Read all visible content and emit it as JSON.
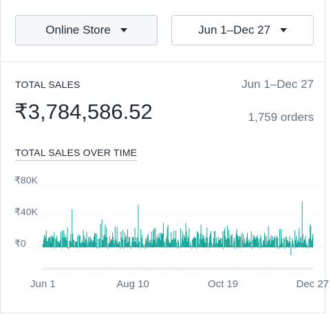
{
  "filters": {
    "channel": "Online Store",
    "date_range": "Jun 1–Dec 27"
  },
  "total_sales": {
    "title": "TOTAL SALES",
    "range": "Jun 1–Dec 27",
    "value": "₹3,784,586.52",
    "orders": "1,759 orders"
  },
  "chart_data": {
    "type": "bar",
    "title": "TOTAL SALES OVER TIME",
    "xlabel": "",
    "ylabel": "",
    "ylim": [
      -20000,
      80000
    ],
    "y_ticks": [
      "₹80K",
      "₹40K",
      "₹0"
    ],
    "x_ticks": [
      "Jun 1",
      "Aug 10",
      "Oct 19",
      "Dec 27"
    ],
    "bar_color": "#11a396",
    "values": [
      4500,
      10000,
      15000,
      15500,
      12000,
      21200,
      8700,
      7600,
      11500,
      12500,
      13300,
      13200,
      6700,
      15600,
      13500,
      13800,
      12500,
      19100,
      -1300,
      11200,
      11100,
      14900,
      7700,
      8000,
      6600,
      5700,
      9500,
      19600,
      -1500,
      20900,
      12800,
      21700,
      12100,
      16800,
      12600,
      13200,
      8800,
      25200,
      -1700,
      -1500,
      7900,
      8500,
      16800,
      6800,
      48000,
      17600,
      9700,
      9400,
      2200,
      7400,
      7700,
      6900,
      14000,
      -1100,
      16900,
      14300,
      15100,
      5500,
      5400,
      8300,
      6900,
      22400,
      15000,
      5700,
      11500,
      9900,
      20000,
      2200,
      6800,
      12200,
      13700,
      7300,
      13200,
      10500,
      8900,
      6400,
      8800,
      13500,
      18400,
      17800,
      6000,
      17500,
      -1200,
      10900,
      -1200,
      11100,
      11000,
      29700,
      1600,
      35400,
      9300,
      9500,
      15000,
      16600,
      28800,
      13000,
      24900,
      13500,
      -1800,
      5100,
      5100,
      14000,
      7900,
      10400,
      9300,
      18800,
      13200,
      9000,
      5300,
      26600,
      10400,
      8200,
      25800,
      5700,
      3900,
      7900,
      7000,
      -1800,
      20100,
      13100,
      10000,
      22200,
      -1800,
      10000,
      18400,
      13000,
      15100,
      5300,
      22900,
      6900,
      13300,
      12900,
      2000,
      -2000,
      6300,
      13600,
      12100,
      13000,
      7600,
      24600,
      6800,
      12300,
      4000,
      12900,
      53800,
      7000,
      6900,
      -1200,
      23200,
      11800,
      16300,
      4800,
      1400,
      4000,
      -1200,
      11000,
      8000,
      11400,
      15300,
      16900,
      6600,
      9300,
      5700,
      9400,
      20000,
      4200,
      9500,
      21700,
      24700,
      9400,
      24700,
      5600,
      13400,
      10300,
      16900,
      11900,
      12400,
      18400,
      9200,
      18400,
      16900,
      17900,
      30900,
      7600,
      6200,
      -1300,
      10400,
      13800,
      25000,
      28300,
      10000,
      5900,
      5200,
      6900,
      19600,
      9600,
      9600,
      11400,
      20700,
      9700,
      11200,
      21200,
      5900,
      -1500,
      9700,
      8000,
      1200,
      -1300,
      24100,
      5200,
      11500,
      20500,
      8500,
      16200,
      14100,
      11800,
      30800,
      20400,
      6700,
      14000,
      11400,
      24400,
      1700,
      6900,
      3800,
      -1700,
      10100,
      10500,
      12600,
      13900,
      11700,
      11900,
      -1400,
      19800,
      19800,
      17100,
      4100,
      11200,
      17400,
      28800,
      10200,
      16300,
      11800,
      15500,
      7400,
      11800,
      5300,
      12800,
      25000,
      12500,
      -1200,
      6000,
      13800,
      17600,
      20500,
      6400,
      1000,
      4200,
      11300,
      20300,
      21000,
      4900,
      12700,
      5700,
      4800,
      13700,
      9000,
      9500,
      12000,
      11300,
      4900,
      11300,
      20200,
      -2000,
      20900,
      24600,
      14100,
      9800,
      10900,
      27900,
      11100,
      22300,
      11700,
      2700,
      16000,
      14300,
      16600,
      1700,
      6000,
      12600,
      9000,
      -1800,
      17800,
      23600,
      15300,
      14200,
      9700,
      13700,
      15200,
      12900,
      -1100,
      18700,
      9100,
      16400,
      4700,
      11100,
      4300,
      7300,
      13300,
      18500,
      9100,
      5600,
      10900,
      6800,
      6900,
      20500,
      -1900,
      9300,
      16100,
      12000,
      14800,
      10100,
      11900,
      13500,
      15600,
      11700,
      6600,
      10700,
      -1400,
      16000,
      12400,
      3600,
      1200,
      8500,
      9300,
      18300,
      14400,
      3400,
      14300,
      6200,
      8500,
      26500,
      9300,
      11400,
      4100,
      15100,
      8600,
      14600,
      9100,
      11100,
      13600,
      12000,
      -1100,
      15000,
      12900,
      12500,
      -1700,
      1900,
      22800,
      4300,
      23500,
      11200,
      6000,
      2300,
      11800,
      10500,
      -1600,
      13300,
      13800,
      9000,
      9800,
      5700,
      7700,
      14500,
      6900,
      -9800,
      3600,
      11500,
      8200,
      4300,
      -1200,
      21600,
      9500,
      14100,
      5000,
      10000,
      7600,
      24100,
      7000,
      11900,
      13000,
      5600,
      58300,
      16700,
      5900,
      9900,
      10200,
      14400,
      3400,
      6500,
      -1300,
      2200,
      10800,
      12200,
      28900,
      26800,
      8500,
      10700,
      17000
    ]
  }
}
